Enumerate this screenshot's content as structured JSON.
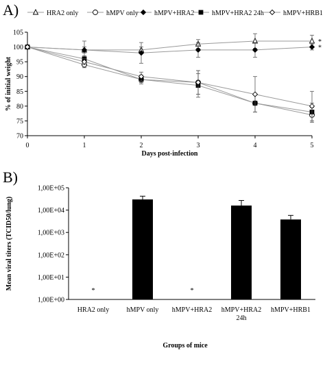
{
  "chart_data": [
    {
      "type": "line",
      "panel_label": "A)",
      "xlabel": "Days post-infection",
      "ylabel": "% of initial weight",
      "x": [
        0,
        1,
        2,
        3,
        4,
        5
      ],
      "xlim": [
        0,
        5
      ],
      "ylim": [
        70,
        105
      ],
      "yticks": [
        70,
        75,
        80,
        85,
        90,
        95,
        100,
        105
      ],
      "grid": false,
      "legend_position": "top",
      "series": [
        {
          "name": "HRA2 only",
          "marker": "triangle-open",
          "values": [
            100,
            99,
            99,
            101,
            102,
            102
          ],
          "errors": [
            0,
            1,
            1,
            1.5,
            2.5,
            2
          ]
        },
        {
          "name": "hMPV only",
          "marker": "circle-open",
          "values": [
            100,
            94,
            89,
            88,
            81,
            77
          ],
          "errors": [
            0,
            1,
            1,
            4,
            3,
            2.5
          ]
        },
        {
          "name": "hMPV+HRA2",
          "marker": "diamond-filled",
          "values": [
            100,
            99,
            98,
            99,
            99,
            100
          ],
          "errors": [
            0,
            3,
            3.5,
            2.5,
            2.5,
            1
          ]
        },
        {
          "name": "hMPV+HRA2 24h",
          "marker": "square-filled",
          "values": [
            100,
            96,
            89,
            87,
            81,
            78
          ],
          "errors": [
            0,
            1,
            1.5,
            4,
            3,
            3
          ]
        },
        {
          "name": "hMPV+HRB1",
          "marker": "diamond-open",
          "values": [
            100,
            95,
            90,
            88,
            84,
            80
          ],
          "errors": [
            0,
            1,
            1.5,
            4,
            6,
            5
          ]
        }
      ],
      "annotations": [
        {
          "text": "*",
          "x": 5,
          "y": 102
        },
        {
          "text": "*",
          "x": 5,
          "y": 100
        }
      ]
    },
    {
      "type": "bar",
      "panel_label": "B)",
      "xlabel": "Groups of mice",
      "ylabel": "Mean viral titers (TCID50/lung)",
      "yscale": "log",
      "ylim": [
        1,
        100000
      ],
      "yticks": [
        "1,00E+00",
        "1,00E+01",
        "1,00E+02",
        "1,00E+03",
        "1,00E+04",
        "1,00E+05"
      ],
      "categories": [
        "HRA2 only",
        "hMPV only",
        "hMPV+HRA2",
        "hMPV+HRA2 24h",
        "hMPV+HRB1"
      ],
      "values": [
        null,
        30000,
        null,
        16000,
        3800
      ],
      "errors_high": [
        null,
        42000,
        null,
        27000,
        5800
      ],
      "bar_color": "#000000",
      "annotations": [
        {
          "text": "*",
          "category": "HRA2 only"
        },
        {
          "text": "*",
          "category": "hMPV+HRA2"
        }
      ]
    }
  ]
}
